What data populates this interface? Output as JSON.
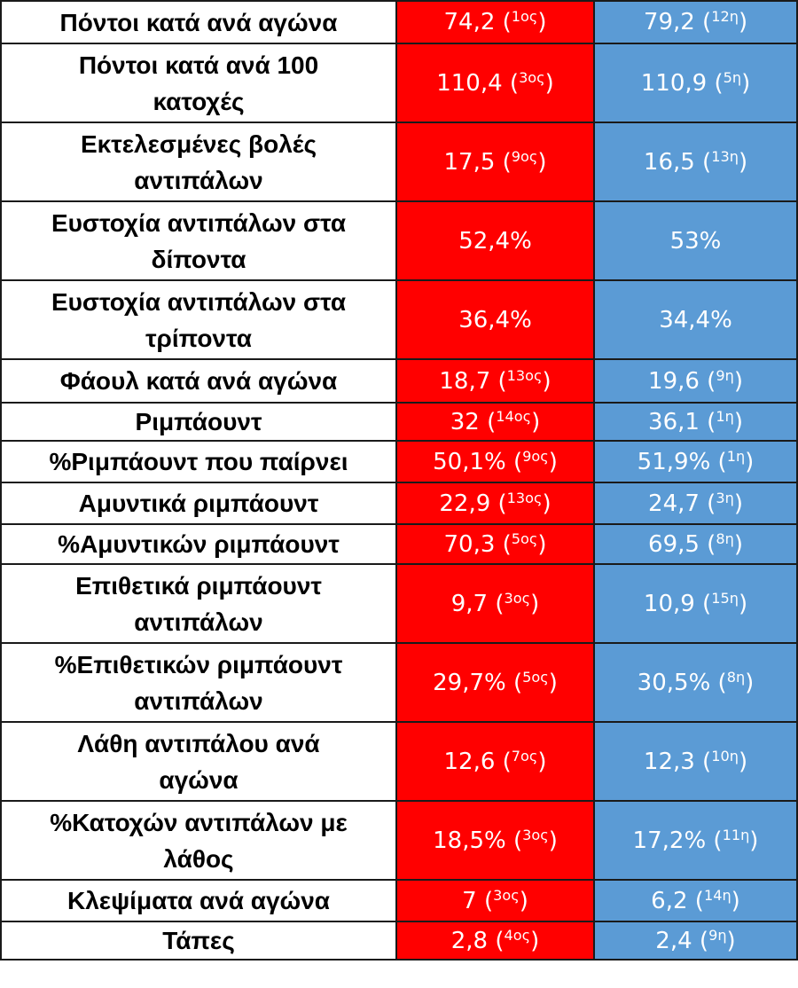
{
  "colors": {
    "team1": "#ff0000",
    "team2": "#5b9bd5",
    "label_bg": "#ffffff",
    "border": "#1a1a1a"
  },
  "rows": [
    {
      "label": "Πόντοι κατά ανά αγώνα",
      "team1": {
        "value": "74,2",
        "rank": "1ος"
      },
      "team2": {
        "value": "79,2",
        "rank": "12η"
      }
    },
    {
      "label": "Πόντοι κατά ανά 100 κατοχές",
      "team1": {
        "value": "110,4",
        "rank": "3ος"
      },
      "team2": {
        "value": "110,9",
        "rank": "5η"
      }
    },
    {
      "label": "Εκτελεσμένες βολές αντιπάλων",
      "team1": {
        "value": "17,5",
        "rank": "9ος"
      },
      "team2": {
        "value": "16,5",
        "rank": "13η"
      }
    },
    {
      "label": "Ευστοχία αντιπάλων στα δίποντα",
      "team1": {
        "value": "52,4%",
        "rank": ""
      },
      "team2": {
        "value": "53%",
        "rank": ""
      }
    },
    {
      "label": "Ευστοχία αντιπάλων στα τρίποντα",
      "team1": {
        "value": "36,4%",
        "rank": ""
      },
      "team2": {
        "value": "34,4%",
        "rank": ""
      }
    },
    {
      "label": "Φάουλ κατά ανά αγώνα",
      "team1": {
        "value": "18,7",
        "rank": "13ος"
      },
      "team2": {
        "value": "19,6",
        "rank": "9η"
      }
    },
    {
      "label": "Ριμπάουντ",
      "team1": {
        "value": "32",
        "rank": "14ος"
      },
      "team2": {
        "value": "36,1",
        "rank": "1η"
      }
    },
    {
      "label": "%Ριμπάουντ που παίρνει",
      "team1": {
        "value": "50,1%",
        "rank": "9ος"
      },
      "team2": {
        "value": "51,9%",
        "rank": "1η"
      }
    },
    {
      "label": "Αμυντικά ριμπάουντ",
      "team1": {
        "value": "22,9",
        "rank": "13ος"
      },
      "team2": {
        "value": "24,7",
        "rank": "3η"
      }
    },
    {
      "label": "%Αμυντικών ριμπάουντ",
      "team1": {
        "value": "70,3",
        "rank": "5ος"
      },
      "team2": {
        "value": "69,5",
        "rank": "8η"
      }
    },
    {
      "label": "Επιθετικά ριμπάουντ αντιπάλων",
      "team1": {
        "value": "9,7",
        "rank": "3ος"
      },
      "team2": {
        "value": "10,9",
        "rank": "15η"
      }
    },
    {
      "label": "%Επιθετικών ριμπάουντ αντιπάλων",
      "team1": {
        "value": "29,7%",
        "rank": "5ος"
      },
      "team2": {
        "value": "30,5%",
        "rank": "8η"
      }
    },
    {
      "label": "Λάθη αντιπάλου ανά αγώνα",
      "team1": {
        "value": "12,6",
        "rank": "7ος"
      },
      "team2": {
        "value": "12,3",
        "rank": "10η"
      }
    },
    {
      "label": "%Κατοχών αντιπάλων με λάθος",
      "team1": {
        "value": "18,5%",
        "rank": "3ος"
      },
      "team2": {
        "value": "17,2%",
        "rank": "11η"
      }
    },
    {
      "label": "Κλεψίματα ανά αγώνα",
      "team1": {
        "value": "7",
        "rank": "3ος"
      },
      "team2": {
        "value": "6,2",
        "rank": "14η"
      }
    },
    {
      "label": "Τάπες",
      "team1": {
        "value": "2,8",
        "rank": "4ος"
      },
      "team2": {
        "value": "2,4",
        "rank": "9η"
      }
    }
  ]
}
